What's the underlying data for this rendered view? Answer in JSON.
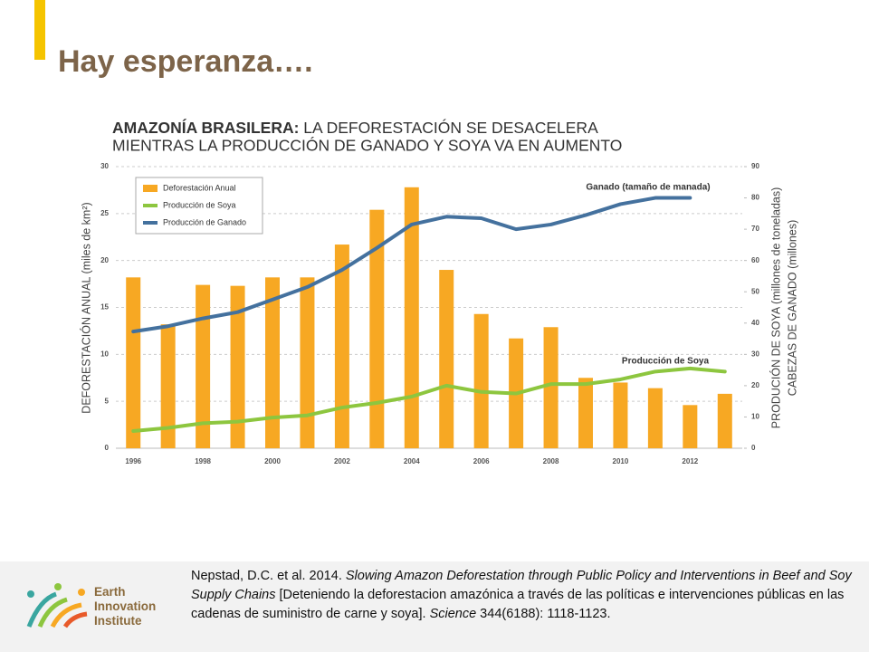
{
  "slide": {
    "heading": "Hay esperanza….",
    "citation": [
      "Nepstad, D.C. et al. 2014. ",
      "Slowing Amazon Deforestation through Public Policy and Interventions in Beef and Soy Supply Chains",
      " [Deteniendo la deforestacion amazónica a través de las políticas e intervenciones públicas en las cadenas de suministro de carne y soya]. ",
      "Science",
      " 344(6188): 1118-1123."
    ],
    "logo": [
      "Earth",
      "Innovation",
      "Institute"
    ]
  },
  "chart_data": {
    "type": "bar",
    "title": [
      "AMAZONÍA BRASILERA:",
      " LA DEFORESTACIÓN SE DESACELERA",
      "MIENTRAS LA PRODUCCIÓN DE GANADO Y SOYA VA EN AUMENTO"
    ],
    "ylabel": "DEFORESTACIÓN ANUAL (miles de km²)",
    "y2label": [
      "PRODUCIÓN DE SOYA (millones de toneladas)",
      "CABEZAS DE GANADO (millones)"
    ],
    "annotations": [
      "Ganado (tamaño de manada)",
      "Producción de Soya"
    ],
    "categories": [
      "1996",
      null,
      "1998",
      null,
      "2000",
      null,
      "2002",
      null,
      "2004",
      null,
      "2006",
      null,
      "2008",
      null,
      "2010",
      null,
      "2012",
      null
    ],
    "series": [
      {
        "name": "Deforestación Anual",
        "color": "#f7a823",
        "type": "bar",
        "values": [
          18.2,
          13.2,
          17.4,
          17.3,
          18.2,
          18.2,
          21.7,
          25.4,
          27.8,
          19.0,
          14.3,
          11.7,
          12.9,
          7.5,
          7.0,
          6.4,
          4.6,
          5.8
        ]
      },
      {
        "name": "Producción de Soya",
        "color": "#8dc63f",
        "type": "line",
        "axis": "y2",
        "values": [
          5.5,
          6.5,
          8,
          8.5,
          9.8,
          10.5,
          13,
          14.5,
          16.5,
          20,
          18,
          17.5,
          20.5,
          20.5,
          22,
          24.5,
          25.5,
          24.5
        ]
      },
      {
        "name": "Producción de Ganado",
        "color": "#44719e",
        "type": "line",
        "axis": "y2",
        "values": [
          37.3,
          39,
          41.5,
          43.5,
          47.5,
          51.5,
          57,
          64,
          71.5,
          74,
          73.5,
          70,
          71.5,
          74.5,
          78,
          80,
          80,
          null
        ]
      }
    ],
    "ylim": [
      0,
      30
    ],
    "yticks": [
      0,
      5,
      10,
      15,
      20,
      25,
      30
    ],
    "y2lim": [
      0,
      90
    ],
    "y2ticks": [
      0,
      10,
      20,
      30,
      40,
      50,
      60,
      70,
      80,
      90
    ],
    "grid": true,
    "legend": "upper left"
  }
}
